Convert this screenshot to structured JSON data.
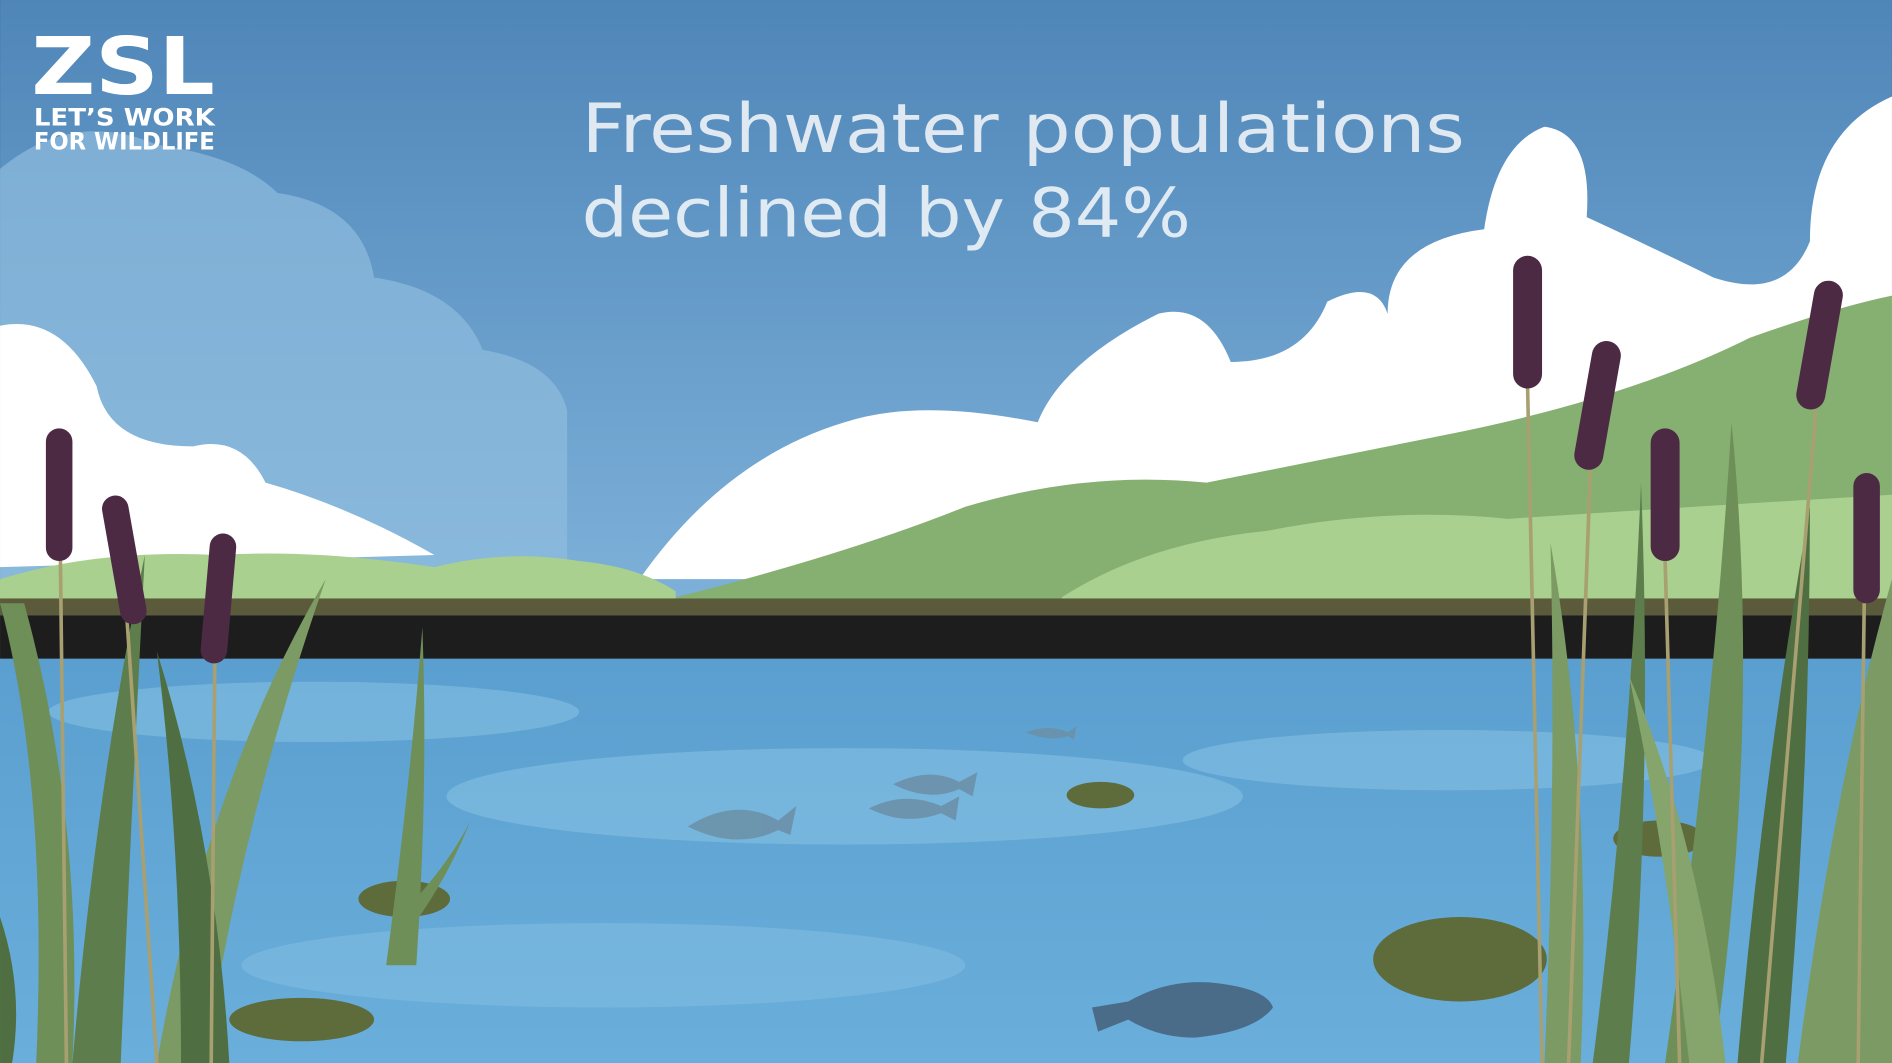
{
  "logo": {
    "name": "ZSL",
    "tagline": [
      "LET’S WORK",
      "FOR WILDLIFE"
    ]
  },
  "headline": [
    "Freshwater populations",
    "declined by 84%"
  ]
}
